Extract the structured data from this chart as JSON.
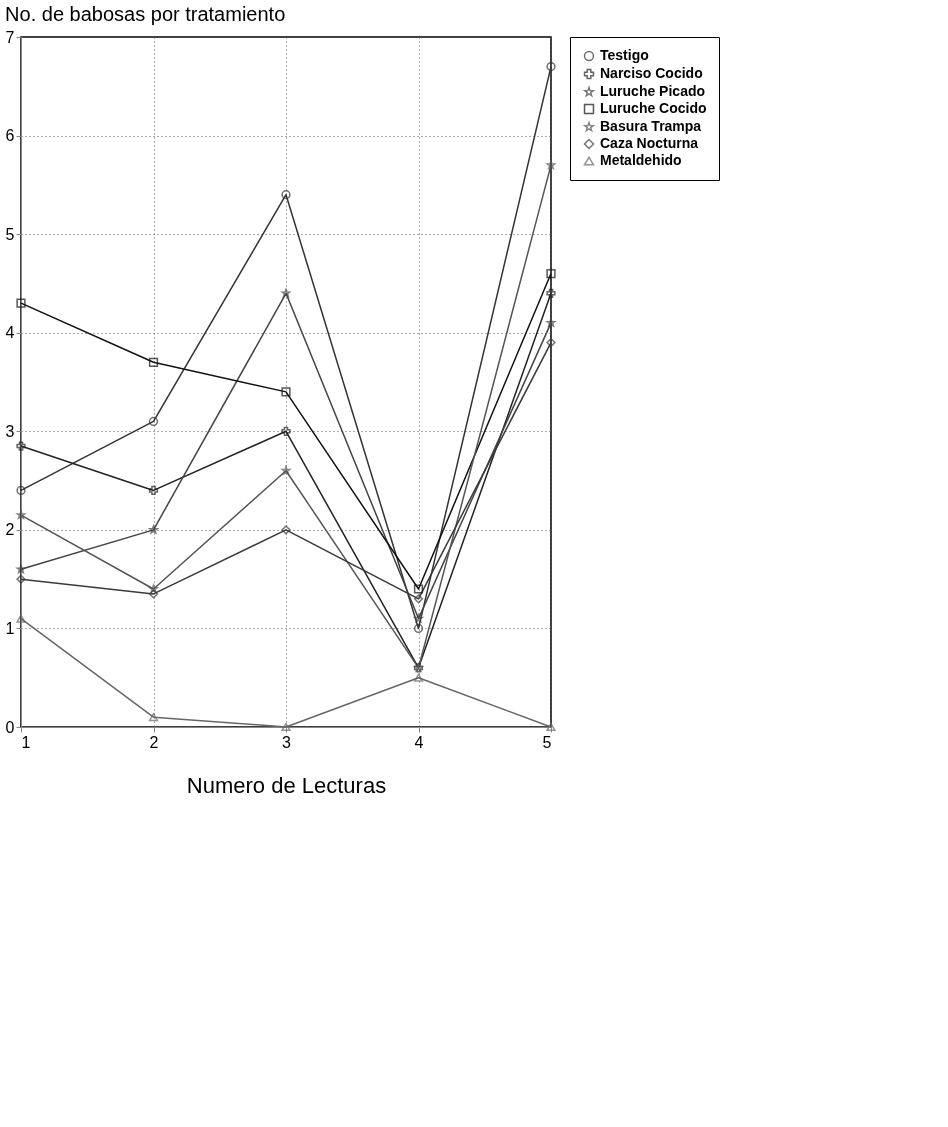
{
  "chart_data": {
    "type": "line",
    "title": "No. de babosas por tratamiento",
    "xlabel": "Numero de Lecturas",
    "x": [
      1,
      2,
      3,
      4,
      5
    ],
    "xlim": [
      1,
      5
    ],
    "xticks": [
      1,
      2,
      3,
      4,
      5
    ],
    "ylim": [
      0,
      7
    ],
    "yticks": [
      0,
      1,
      2,
      3,
      4,
      5,
      6,
      7
    ],
    "grid": true,
    "legend": "right",
    "line_style": "solid",
    "series": [
      {
        "name": "Testigo",
        "color": "#333333",
        "marker": "circle",
        "values": [
          2.4,
          3.1,
          5.4,
          1.0,
          6.7
        ]
      },
      {
        "name": "Narciso Cocido",
        "color": "#222222",
        "marker": "cross",
        "values": [
          2.85,
          2.4,
          3.0,
          0.6,
          4.4
        ]
      },
      {
        "name": "Luruche Picado",
        "color": "#444444",
        "marker": "star",
        "values": [
          1.6,
          2.0,
          4.4,
          1.1,
          4.1
        ]
      },
      {
        "name": "Luruche Cocido",
        "color": "#111111",
        "marker": "square",
        "values": [
          4.3,
          3.7,
          3.4,
          1.4,
          4.6
        ]
      },
      {
        "name": "Basura Trampa",
        "color": "#555555",
        "marker": "star",
        "values": [
          2.15,
          1.4,
          2.6,
          0.6,
          5.7
        ]
      },
      {
        "name": "Caza Nocturna",
        "color": "#3a3a3a",
        "marker": "diamond",
        "values": [
          1.5,
          1.35,
          2.0,
          1.3,
          3.9
        ]
      },
      {
        "name": "Metaldehido",
        "color": "#666666",
        "marker": "triangle",
        "values": [
          1.1,
          0.1,
          0.0,
          0.5,
          0.0
        ]
      }
    ]
  }
}
